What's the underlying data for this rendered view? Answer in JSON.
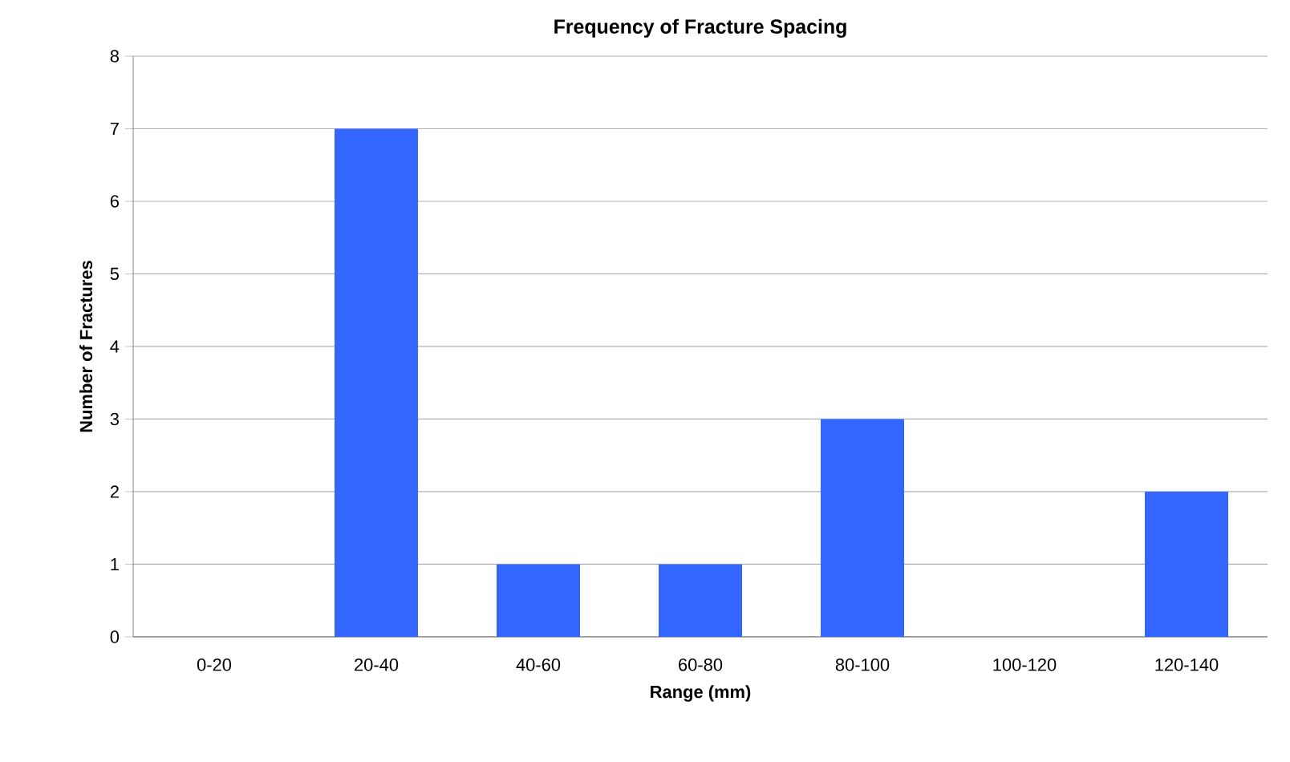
{
  "chart_data": {
    "type": "bar",
    "title": "Frequency of Fracture Spacing",
    "xlabel": "Range (mm)",
    "ylabel": "Number of Fractures",
    "categories": [
      "0-20",
      "20-40",
      "40-60",
      "60-80",
      "80-100",
      "100-120",
      "120-140"
    ],
    "values": [
      0,
      7,
      1,
      1,
      3,
      0,
      2
    ],
    "color": "#3366ff",
    "ylim": [
      0,
      8
    ],
    "yticks": [
      0,
      1,
      2,
      3,
      4,
      5,
      6,
      7,
      8
    ],
    "grid": "y"
  }
}
